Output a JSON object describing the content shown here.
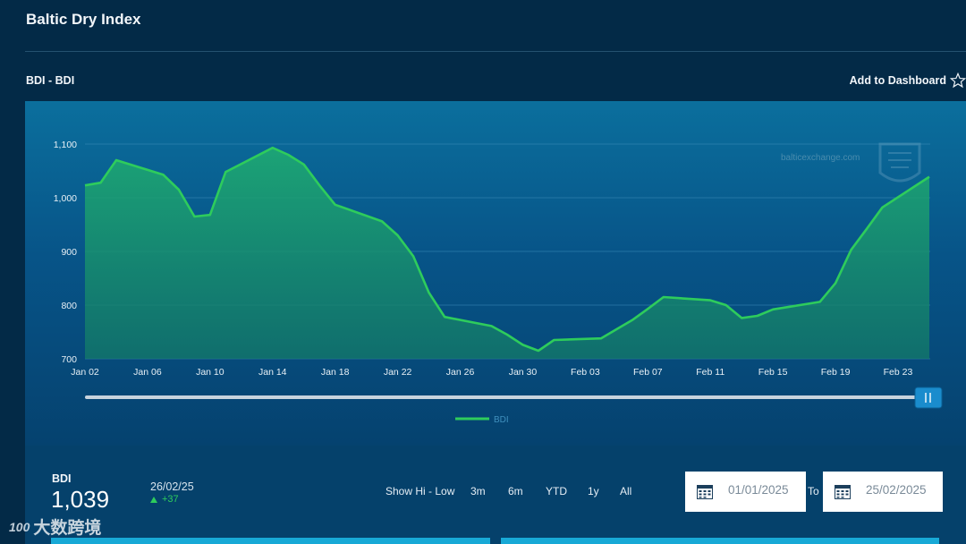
{
  "page": {
    "title": "Baltic Dry Index"
  },
  "section": {
    "label": "BDI - BDI",
    "dashboard_label": "Add to Dashboard"
  },
  "icons": {
    "star": "star-outline-icon",
    "calendar": "calendar-icon",
    "up": "triangle-up-icon",
    "handle": "slider-handle-icon"
  },
  "colors": {
    "line": "#2ecc5c",
    "area": "#1a9c6e",
    "panel": "#0b6f9d",
    "background": "#032a47"
  },
  "chart_data": {
    "type": "area",
    "title": "",
    "xlabel": "",
    "ylabel": "",
    "ylim": [
      700,
      1100
    ],
    "yticks": [
      700,
      800,
      900,
      1000,
      1100
    ],
    "ytick_labels": [
      "700",
      "800",
      "900",
      "1,000",
      "1,100"
    ],
    "xticks": [
      "2025-01-02",
      "2025-01-06",
      "2025-01-10",
      "2025-01-14",
      "2025-01-18",
      "2025-01-22",
      "2025-01-26",
      "2025-01-30",
      "2025-02-03",
      "2025-02-07",
      "2025-02-11",
      "2025-02-15",
      "2025-02-19",
      "2025-02-23"
    ],
    "xtick_labels": [
      "Jan 02",
      "Jan 06",
      "Jan 10",
      "Jan 14",
      "Jan 18",
      "Jan 22",
      "Jan 26",
      "Jan 30",
      "Feb 03",
      "Feb 07",
      "Feb 11",
      "Feb 15",
      "Feb 19",
      "Feb 23"
    ],
    "grid": true,
    "legend": "bottom-center",
    "watermark": "balticexchange.com",
    "series": [
      {
        "name": "BDI",
        "x": [
          "2025-01-02",
          "2025-01-03",
          "2025-01-04",
          "2025-01-07",
          "2025-01-08",
          "2025-01-09",
          "2025-01-10",
          "2025-01-11",
          "2025-01-14",
          "2025-01-15",
          "2025-01-16",
          "2025-01-17",
          "2025-01-18",
          "2025-01-21",
          "2025-01-22",
          "2025-01-23",
          "2025-01-24",
          "2025-01-25",
          "2025-01-28",
          "2025-01-29",
          "2025-01-30",
          "2025-01-31",
          "2025-02-01",
          "2025-02-04",
          "2025-02-05",
          "2025-02-06",
          "2025-02-07",
          "2025-02-08",
          "2025-02-11",
          "2025-02-12",
          "2025-02-13",
          "2025-02-14",
          "2025-02-15",
          "2025-02-18",
          "2025-02-19",
          "2025-02-20",
          "2025-02-21",
          "2025-02-22",
          "2025-02-25"
        ],
        "values": [
          1023,
          1028,
          1070,
          1043,
          1015,
          965,
          968,
          1048,
          1093,
          1080,
          1062,
          1023,
          987,
          956,
          930,
          891,
          823,
          778,
          761,
          745,
          726,
          715,
          735,
          738,
          755,
          772,
          793,
          815,
          809,
          800,
          776,
          780,
          792,
          806,
          841,
          903,
          942,
          982,
          1039
        ]
      }
    ]
  },
  "summary": {
    "name": "BDI",
    "value": "1,039",
    "date": "26/02/25",
    "change": "+37"
  },
  "ranges": [
    "Show Hi - Low",
    "3m",
    "6m",
    "YTD",
    "1y",
    "All"
  ],
  "date_range": {
    "from": "01/01/2025",
    "to_label": "To",
    "to": "25/02/2025"
  },
  "watermark": {
    "logo": "100",
    "text": "大数跨境"
  }
}
